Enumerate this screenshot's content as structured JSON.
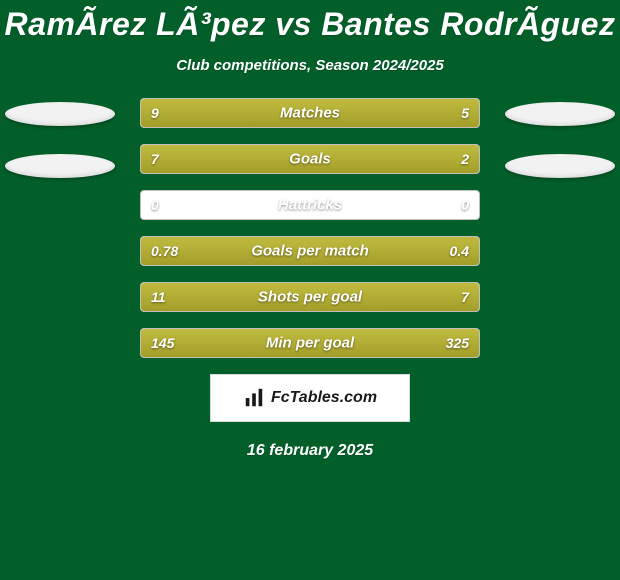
{
  "title": "RamÃ­rez LÃ³pez vs Bantes RodrÃ­guez",
  "title_fontsize": 32,
  "title_color": "#ffffff",
  "subtitle": "Club competitions, Season 2024/2025",
  "subtitle_fontsize": 15,
  "subtitle_color": "#ffffff",
  "background_color": "#035f2a",
  "avatar_color_left": "#f2f2f2",
  "avatar_color_right": "#f2f2f2",
  "bars": {
    "type": "comparison-bar",
    "track_color": "#ffffff",
    "fill_color": "#b0ab33",
    "label_color": "#ffffff",
    "label_fontsize": 15,
    "value_color": "#ffffff",
    "value_fontsize": 14,
    "rows": [
      {
        "label": "Matches",
        "left": "9",
        "right": "5",
        "left_pct": 64,
        "right_pct": 36
      },
      {
        "label": "Goals",
        "left": "7",
        "right": "2",
        "left_pct": 78,
        "right_pct": 22
      },
      {
        "label": "Hattricks",
        "left": "0",
        "right": "0",
        "left_pct": 0,
        "right_pct": 0
      },
      {
        "label": "Goals per match",
        "left": "0.78",
        "right": "0.4",
        "left_pct": 66,
        "right_pct": 34
      },
      {
        "label": "Shots per goal",
        "left": "11",
        "right": "7",
        "left_pct": 61,
        "right_pct": 39
      },
      {
        "label": "Min per goal",
        "left": "145",
        "right": "325",
        "left_pct": 31,
        "right_pct": 69
      }
    ]
  },
  "branding_text": "FcTables.com",
  "branding_fontsize": 16,
  "date_text": "16 february 2025",
  "date_fontsize": 16,
  "date_color": "#ffffff"
}
